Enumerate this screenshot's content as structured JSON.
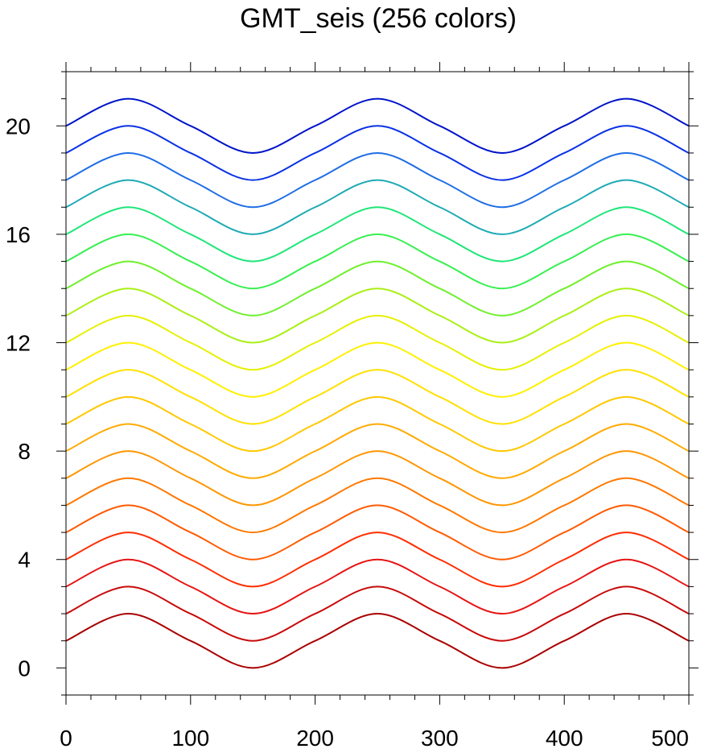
{
  "chart_data": {
    "type": "line",
    "title": "GMT_seis (256 colors)",
    "xlabel": "",
    "ylabel": "",
    "xlim": [
      0,
      500
    ],
    "ylim": [
      -1,
      22
    ],
    "x_ticks": [
      0,
      100,
      200,
      300,
      400,
      500
    ],
    "y_ticks": [
      0,
      4,
      8,
      12,
      16,
      20
    ],
    "x_tick_labels": [
      "0",
      "100",
      "200",
      "300",
      "400",
      "500"
    ],
    "y_tick_labels": [
      "0",
      "4",
      "8",
      "12",
      "16",
      "20"
    ],
    "x_minor_step": 20,
    "y_minor_step": 1,
    "grid": false,
    "x": [
      0,
      50,
      100,
      150,
      200,
      250,
      300,
      350,
      400,
      450,
      500
    ],
    "series": [
      {
        "color": "#aa0000",
        "values": [
          1,
          2,
          1,
          0,
          1,
          2,
          1,
          0,
          1,
          2,
          1
        ]
      },
      {
        "color": "#c80a0a",
        "values": [
          2,
          3,
          2,
          1,
          2,
          3,
          2,
          1,
          2,
          3,
          2
        ]
      },
      {
        "color": "#e61414",
        "values": [
          3,
          4,
          3,
          2,
          3,
          4,
          3,
          2,
          3,
          4,
          3
        ]
      },
      {
        "color": "#ff2d00",
        "values": [
          4,
          5,
          4,
          3,
          4,
          5,
          4,
          3,
          4,
          5,
          4
        ]
      },
      {
        "color": "#ff5a00",
        "values": [
          5,
          6,
          5,
          4,
          5,
          6,
          5,
          4,
          5,
          6,
          5
        ]
      },
      {
        "color": "#ff7800",
        "values": [
          6,
          7,
          6,
          5,
          6,
          7,
          6,
          5,
          6,
          7,
          6
        ]
      },
      {
        "color": "#ff9600",
        "values": [
          7,
          8,
          7,
          6,
          7,
          8,
          7,
          6,
          7,
          8,
          7
        ]
      },
      {
        "color": "#ffaa00",
        "values": [
          8,
          9,
          8,
          7,
          8,
          9,
          8,
          7,
          8,
          9,
          8
        ]
      },
      {
        "color": "#ffc800",
        "values": [
          9,
          10,
          9,
          8,
          9,
          10,
          9,
          8,
          9,
          10,
          9
        ]
      },
      {
        "color": "#ffe100",
        "values": [
          10,
          11,
          10,
          9,
          10,
          11,
          10,
          9,
          10,
          11,
          10
        ]
      },
      {
        "color": "#fff000",
        "values": [
          11,
          12,
          11,
          10,
          11,
          12,
          11,
          10,
          11,
          12,
          11
        ]
      },
      {
        "color": "#e6f000",
        "values": [
          12,
          13,
          12,
          11,
          12,
          13,
          12,
          11,
          12,
          13,
          12
        ]
      },
      {
        "color": "#aaf014",
        "values": [
          13,
          14,
          13,
          12,
          13,
          14,
          13,
          12,
          13,
          14,
          13
        ]
      },
      {
        "color": "#6ef02d",
        "values": [
          14,
          15,
          14,
          13,
          14,
          15,
          14,
          13,
          14,
          15,
          14
        ]
      },
      {
        "color": "#37f050",
        "values": [
          15,
          16,
          15,
          14,
          15,
          16,
          15,
          14,
          15,
          16,
          15
        ]
      },
      {
        "color": "#1ee678",
        "values": [
          16,
          17,
          16,
          15,
          16,
          17,
          16,
          15,
          16,
          17,
          16
        ]
      },
      {
        "color": "#1eaab4",
        "values": [
          17,
          18,
          17,
          16,
          17,
          18,
          17,
          16,
          17,
          18,
          17
        ]
      },
      {
        "color": "#1e6ee6",
        "values": [
          18,
          19,
          18,
          17,
          18,
          19,
          18,
          17,
          18,
          19,
          18
        ]
      },
      {
        "color": "#0a32e6",
        "values": [
          19,
          20,
          19,
          18,
          19,
          20,
          19,
          18,
          19,
          20,
          19
        ]
      },
      {
        "color": "#0014c8",
        "values": [
          20,
          21,
          20,
          19,
          20,
          21,
          20,
          19,
          20,
          21,
          20
        ]
      }
    ]
  }
}
